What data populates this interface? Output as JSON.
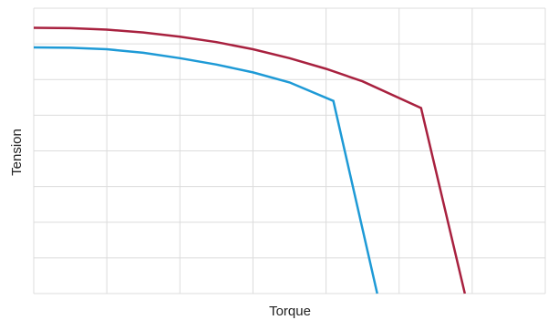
{
  "chart_data": {
    "type": "line",
    "title": "",
    "xlabel": "Torque",
    "ylabel": "Tension",
    "xlim": [
      0,
      7
    ],
    "ylim": [
      0,
      8
    ],
    "grid": true,
    "x_tick_labels": [],
    "y_tick_labels": [],
    "series": [
      {
        "color": "#a8213f",
        "x": [
          0,
          0.5,
          1,
          1.5,
          2,
          2.5,
          3,
          3.5,
          4,
          4.5,
          5.3,
          5.9
        ],
        "y": [
          7.45,
          7.44,
          7.4,
          7.32,
          7.2,
          7.05,
          6.85,
          6.6,
          6.3,
          5.95,
          5.2,
          0
        ]
      },
      {
        "color": "#1e9ad6",
        "x": [
          0,
          0.5,
          1,
          1.5,
          2,
          2.5,
          3,
          3.5,
          4.1,
          4.7
        ],
        "y": [
          6.9,
          6.89,
          6.85,
          6.75,
          6.6,
          6.42,
          6.2,
          5.92,
          5.4,
          0
        ]
      }
    ]
  }
}
